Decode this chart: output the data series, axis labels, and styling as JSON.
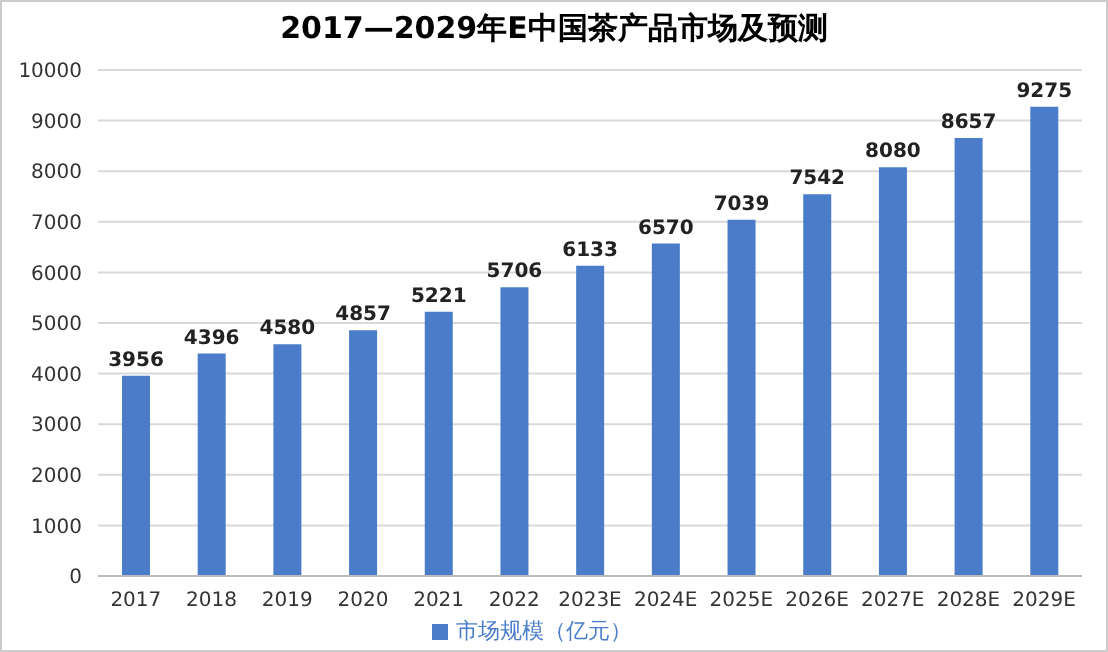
{
  "chart_data": {
    "type": "bar",
    "title": "2017—2029年E中国茶产品市场及预测",
    "categories": [
      "2017",
      "2018",
      "2019",
      "2020",
      "2021",
      "2022",
      "2023E",
      "2024E",
      "2025E",
      "2026E",
      "2027E",
      "2028E",
      "2029E"
    ],
    "series": [
      {
        "name": "市场规模（亿元）",
        "color": "#4a7cc9",
        "values": [
          3956,
          4396,
          4580,
          4857,
          5221,
          5706,
          6133,
          6570,
          7039,
          7542,
          8080,
          8657,
          9275
        ]
      }
    ],
    "ylim": [
      0,
      10000
    ],
    "yticks": [
      0,
      1000,
      2000,
      3000,
      4000,
      5000,
      6000,
      7000,
      8000,
      9000,
      10000
    ],
    "grid": "y",
    "legend": "bottom",
    "data_labels": true
  }
}
